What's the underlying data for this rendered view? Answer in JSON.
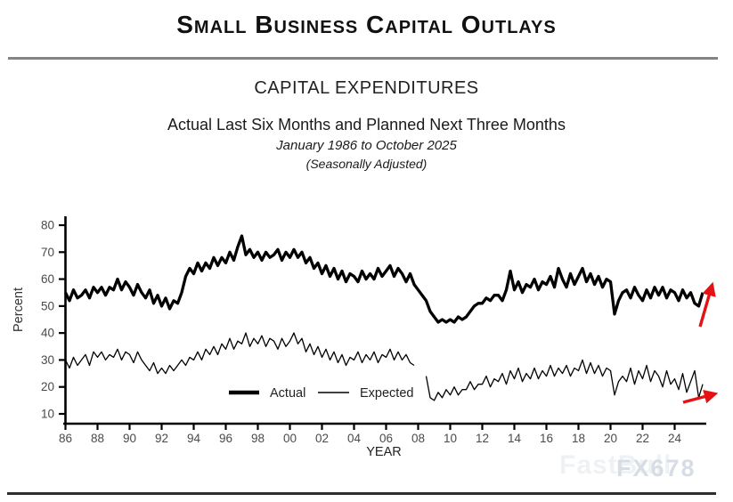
{
  "header": {
    "title": "Small Business Capital Outlays"
  },
  "chart": {
    "title": "CAPITAL EXPENDITURES",
    "subtitle": "Actual Last Six Months and Planned Next Three Months",
    "period": "January 1986 to October 2025",
    "adjustment_note": "(Seasonally Adjusted)"
  },
  "watermark": {
    "back": "FastBull",
    "front": "FX678"
  },
  "chart_data": {
    "type": "line",
    "title": "CAPITAL EXPENDITURES",
    "xlabel": "YEAR",
    "ylabel": "Percent",
    "ylim": [
      10,
      80
    ],
    "y_ticks": [
      10,
      20,
      30,
      40,
      50,
      60,
      70,
      80
    ],
    "x_start_year": 1986,
    "x_end_year_fraction": 2025.75,
    "points_per_year": 4,
    "x_tick_interval_years": 2,
    "x_tick_labels": [
      "86",
      "88",
      "90",
      "92",
      "94",
      "96",
      "98",
      "00",
      "02",
      "04",
      "06",
      "08",
      "10",
      "12",
      "14",
      "16",
      "18",
      "20",
      "22",
      "24"
    ],
    "grid": false,
    "legend_position": "inside-bottom-center",
    "line_color": "#000000",
    "arrow_color": "#e41212",
    "series": [
      {
        "name": "Actual",
        "stroke_width": 3.3,
        "values": [
          55,
          52,
          56,
          53,
          54,
          56,
          53,
          57,
          55,
          57,
          54,
          57,
          56,
          60,
          56,
          59,
          57,
          54,
          58,
          55,
          53,
          56,
          51,
          54,
          50,
          53,
          49,
          52,
          51,
          55,
          61,
          64,
          62,
          66,
          63,
          66,
          64,
          68,
          65,
          68,
          66,
          70,
          67,
          72,
          76,
          69,
          71,
          68,
          70,
          67,
          70,
          68,
          69,
          71,
          67,
          70,
          68,
          71,
          68,
          70,
          66,
          68,
          64,
          66,
          62,
          65,
          61,
          64,
          60,
          63,
          59,
          62,
          61,
          59,
          63,
          60,
          62,
          60,
          64,
          61,
          63,
          65,
          61,
          64,
          62,
          59,
          62,
          58,
          56,
          54,
          52,
          48,
          46,
          44,
          45,
          44,
          45,
          44,
          46,
          45,
          46,
          48,
          50,
          51,
          51,
          53,
          52,
          54,
          54,
          52,
          56,
          63,
          56,
          59,
          55,
          58,
          57,
          60,
          56,
          59,
          58,
          61,
          57,
          64,
          60,
          57,
          62,
          58,
          61,
          64,
          59,
          62,
          58,
          61,
          57,
          60,
          59,
          47,
          52,
          55,
          56,
          53,
          57,
          54,
          52,
          56,
          53,
          57,
          54,
          57,
          53,
          56,
          55,
          52,
          56,
          53,
          55,
          51,
          50,
          55
        ]
      },
      {
        "name": "Expected",
        "stroke_width": 1.3,
        "values": [
          30,
          27,
          31,
          28,
          30,
          32,
          28,
          33,
          31,
          33,
          30,
          32,
          31,
          34,
          30,
          33,
          32,
          29,
          33,
          30,
          28,
          26,
          29,
          25,
          27,
          25,
          28,
          26,
          28,
          30,
          28,
          31,
          30,
          33,
          30,
          34,
          32,
          35,
          32,
          36,
          34,
          38,
          34,
          37,
          36,
          40,
          35,
          38,
          36,
          39,
          35,
          38,
          37,
          34,
          38,
          35,
          37,
          40,
          36,
          38,
          33,
          36,
          32,
          35,
          31,
          34,
          30,
          33,
          29,
          32,
          28,
          31,
          30,
          33,
          29,
          32,
          30,
          33,
          29,
          32,
          31,
          34,
          30,
          33,
          30,
          32,
          29,
          28,
          null,
          null,
          24,
          16,
          15,
          18,
          16,
          19,
          17,
          20,
          17,
          19,
          19,
          22,
          19,
          21,
          21,
          24,
          20,
          23,
          22,
          25,
          21,
          26,
          23,
          27,
          22,
          25,
          23,
          27,
          23,
          26,
          24,
          28,
          24,
          27,
          25,
          28,
          24,
          27,
          26,
          30,
          25,
          29,
          25,
          28,
          24,
          27,
          26,
          17,
          22,
          24,
          22,
          27,
          21,
          26,
          23,
          28,
          22,
          26,
          24,
          20,
          26,
          21,
          23,
          19,
          25,
          18,
          22,
          26,
          16,
          21
        ]
      }
    ],
    "annotations": [
      {
        "target": "Actual",
        "shape": "arrow",
        "direction": "up-right",
        "color": "#e41212"
      },
      {
        "target": "Expected",
        "shape": "arrow",
        "direction": "right",
        "color": "#e41212"
      }
    ]
  }
}
